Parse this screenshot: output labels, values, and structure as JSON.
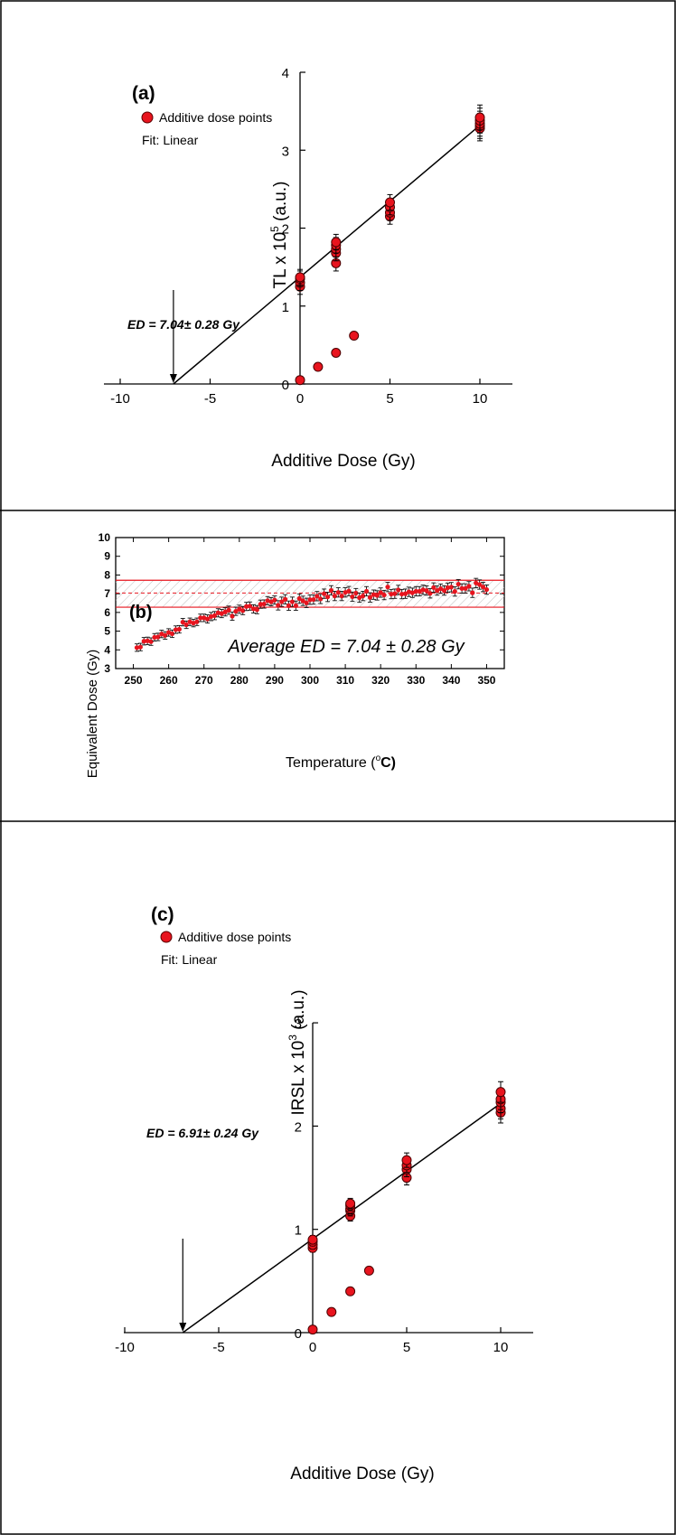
{
  "panels": {
    "a": {
      "tag": "(a)",
      "legend_series": "Additive dose points",
      "legend_fit": "Fit: Linear",
      "ylabel_main": "TL x 10",
      "ylabel_exp": "5",
      "ylabel_unit": " (a.u.)",
      "xlabel": "Additive Dose (Gy)",
      "ed_label": "ED = 7.04± 0.28 Gy"
    },
    "b": {
      "tag": "(b)",
      "title": "Average ED = 7.04 ± 0.28 Gy",
      "ylabel": "Equivalent Dose (Gy)",
      "xlabel_main": "Temperature (",
      "xlabel_sup": "o",
      "xlabel_end": "C)"
    },
    "c": {
      "tag": "(c)",
      "legend_series": "Additive dose points",
      "legend_fit": "Fit: Linear",
      "ylabel_main": "IRSL x 10",
      "ylabel_exp": "3",
      "ylabel_unit": " (a.u.)",
      "xlabel": "Additive Dose (Gy)",
      "ed_label": "ED = 6.91± 0.24 Gy"
    }
  },
  "chart_data": [
    {
      "type": "scatter",
      "panel": "a",
      "xlim": [
        -12,
        12
      ],
      "ylim": [
        0,
        4
      ],
      "xticks": [
        -10,
        -5,
        0,
        5,
        10
      ],
      "yticks": [
        0,
        1,
        2,
        3,
        4
      ],
      "marker_color": "#e8141e",
      "series": [
        {
          "name": "Additive dose points",
          "x": [
            0,
            0,
            0,
            0,
            2,
            2,
            2,
            2,
            2,
            5,
            5,
            5,
            5,
            10,
            10,
            10,
            10,
            10
          ],
          "y": [
            1.25,
            1.3,
            1.35,
            1.37,
            1.55,
            1.68,
            1.73,
            1.78,
            1.82,
            2.15,
            2.2,
            2.27,
            2.33,
            3.28,
            3.31,
            3.34,
            3.38,
            3.42
          ],
          "err": [
            0.1,
            0.1,
            0.1,
            0.1,
            0.1,
            0.1,
            0.1,
            0.1,
            0.1,
            0.1,
            0.1,
            0.1,
            0.1,
            0.16,
            0.16,
            0.16,
            0.16,
            0.16
          ]
        },
        {
          "x": [
            0,
            1,
            2,
            3
          ],
          "y": [
            0.05,
            0.22,
            0.4,
            0.62
          ],
          "err": [
            0.02,
            0.02,
            0.02,
            0.02
          ]
        }
      ],
      "fit": {
        "name": "Fit: Linear",
        "x": [
          -7.04,
          10
        ],
        "y": [
          0,
          3.32
        ]
      },
      "ed": {
        "x": -7.04,
        "label": "ED = 7.04± 0.28 Gy"
      }
    },
    {
      "type": "scatter",
      "panel": "b",
      "xlim": [
        245,
        355
      ],
      "ylim": [
        3,
        10
      ],
      "xticks": [
        250,
        260,
        270,
        280,
        290,
        300,
        310,
        320,
        330,
        340,
        350
      ],
      "yticks": [
        3,
        4,
        5,
        6,
        7,
        8,
        9,
        10
      ],
      "marker_color": "#e8141e",
      "band": {
        "mean": 7.04,
        "lower": 6.28,
        "upper": 7.72
      },
      "series": [
        {
          "x": [
            251,
            252,
            253,
            254,
            255,
            256,
            257,
            258,
            259,
            260,
            261,
            262,
            263,
            264,
            265,
            266,
            267,
            268,
            269,
            270,
            271,
            272,
            273,
            274,
            275,
            276,
            277,
            278,
            279,
            280,
            281,
            282,
            283,
            284,
            285,
            286,
            287,
            288,
            289,
            290,
            291,
            292,
            293,
            294,
            295,
            296,
            297,
            298,
            299,
            300,
            301,
            302,
            303,
            304,
            305,
            306,
            307,
            308,
            309,
            310,
            311,
            312,
            313,
            314,
            315,
            316,
            317,
            318,
            319,
            320,
            321,
            322,
            323,
            324,
            325,
            326,
            327,
            328,
            329,
            330,
            331,
            332,
            333,
            334,
            335,
            336,
            337,
            338,
            339,
            340,
            341,
            342,
            343,
            344,
            345,
            346,
            347,
            348,
            349,
            350
          ],
          "y": [
            4.12,
            4.15,
            4.46,
            4.48,
            4.44,
            4.67,
            4.69,
            4.85,
            4.77,
            4.93,
            4.86,
            5.08,
            5.1,
            5.48,
            5.34,
            5.5,
            5.43,
            5.5,
            5.71,
            5.71,
            5.65,
            5.78,
            5.83,
            5.98,
            5.94,
            6.03,
            6.12,
            5.8,
            6.06,
            6.17,
            6.1,
            6.32,
            6.34,
            6.19,
            6.15,
            6.44,
            6.45,
            6.63,
            6.57,
            6.66,
            6.38,
            6.57,
            6.7,
            6.36,
            6.57,
            6.36,
            6.74,
            6.62,
            6.51,
            6.68,
            6.69,
            6.87,
            6.72,
            7.0,
            6.83,
            7.18,
            6.88,
            7.07,
            6.88,
            7.07,
            7.14,
            6.84,
            7.03,
            6.79,
            6.88,
            7.13,
            6.8,
            6.95,
            6.91,
            7.06,
            6.93,
            7.36,
            6.98,
            7.0,
            7.2,
            6.98,
            7.0,
            7.1,
            7.05,
            7.13,
            7.13,
            7.21,
            7.17,
            7.02,
            7.33,
            7.17,
            7.27,
            7.17,
            7.32,
            7.35,
            7.12,
            7.51,
            7.28,
            7.28,
            7.4,
            7.05,
            7.57,
            7.49,
            7.36,
            7.22
          ],
          "err": [
            0.2,
            0.2,
            0.2,
            0.2,
            0.2,
            0.2,
            0.2,
            0.2,
            0.2,
            0.2,
            0.2,
            0.2,
            0.2,
            0.2,
            0.2,
            0.2,
            0.2,
            0.2,
            0.2,
            0.2,
            0.22,
            0.22,
            0.22,
            0.22,
            0.22,
            0.22,
            0.22,
            0.22,
            0.22,
            0.22,
            0.22,
            0.22,
            0.22,
            0.22,
            0.22,
            0.22,
            0.22,
            0.22,
            0.22,
            0.22,
            0.25,
            0.25,
            0.25,
            0.25,
            0.25,
            0.25,
            0.25,
            0.25,
            0.25,
            0.25,
            0.25,
            0.25,
            0.25,
            0.25,
            0.25,
            0.25,
            0.25,
            0.25,
            0.25,
            0.25,
            0.25,
            0.25,
            0.25,
            0.25,
            0.25,
            0.25,
            0.25,
            0.25,
            0.25,
            0.25,
            0.25,
            0.25,
            0.25,
            0.25,
            0.25,
            0.25,
            0.25,
            0.25,
            0.25,
            0.25,
            0.25,
            0.25,
            0.25,
            0.25,
            0.25,
            0.25,
            0.25,
            0.25,
            0.25,
            0.25,
            0.25,
            0.25,
            0.25,
            0.25,
            0.25,
            0.25,
            0.25,
            0.25,
            0.25,
            0.25
          ]
        }
      ]
    },
    {
      "type": "scatter",
      "panel": "c",
      "xlim": [
        -12,
        12
      ],
      "ylim": [
        0,
        3
      ],
      "xticks": [
        -10,
        -5,
        0,
        5,
        10
      ],
      "yticks": [
        0,
        1,
        2,
        3
      ],
      "marker_color": "#e8141e",
      "series": [
        {
          "name": "Additive dose points",
          "x": [
            0,
            0,
            0,
            0,
            2,
            2,
            2,
            2,
            2,
            5,
            5,
            5,
            5,
            10,
            10,
            10,
            10,
            10
          ],
          "y": [
            0.82,
            0.85,
            0.88,
            0.9,
            1.13,
            1.18,
            1.2,
            1.23,
            1.25,
            1.5,
            1.58,
            1.62,
            1.67,
            2.13,
            2.17,
            2.23,
            2.26,
            2.33
          ],
          "err": [
            0.04,
            0.04,
            0.04,
            0.04,
            0.05,
            0.05,
            0.05,
            0.05,
            0.05,
            0.07,
            0.07,
            0.07,
            0.07,
            0.1,
            0.1,
            0.1,
            0.1,
            0.1
          ]
        },
        {
          "x": [
            0,
            1,
            2,
            3
          ],
          "y": [
            0.03,
            0.2,
            0.4,
            0.6
          ],
          "err": [
            0.02,
            0.02,
            0.02,
            0.02
          ]
        }
      ],
      "fit": {
        "name": "Fit: Linear",
        "x": [
          -6.91,
          10
        ],
        "y": [
          0,
          2.22
        ]
      },
      "ed": {
        "x": -6.91,
        "label": "ED = 6.91± 0.24 Gy"
      }
    }
  ]
}
